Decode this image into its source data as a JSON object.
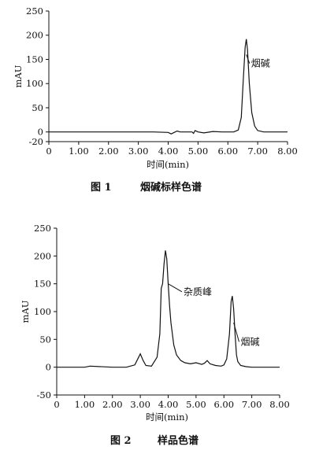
{
  "chart_data": [
    {
      "type": "line",
      "caption_num": "图 1",
      "caption_text": "烟碱标样色谱",
      "xlabel": "时间(min)",
      "ylabel": "mAU",
      "xlim": [
        0,
        8
      ],
      "ylim": [
        -20,
        250
      ],
      "xticks": [
        {
          "v": 0,
          "label": "0"
        },
        {
          "v": 1,
          "label": "1.00"
        },
        {
          "v": 2,
          "label": "2.00"
        },
        {
          "v": 3,
          "label": "3.00"
        },
        {
          "v": 4,
          "label": "4.00"
        },
        {
          "v": 5,
          "label": "5.00"
        },
        {
          "v": 6,
          "label": "6.00"
        },
        {
          "v": 7,
          "label": "7.00"
        },
        {
          "v": 8,
          "label": "8.00"
        }
      ],
      "yticks": [
        {
          "v": -20,
          "label": "-20"
        },
        {
          "v": 0,
          "label": "0"
        },
        {
          "v": 50,
          "label": "50"
        },
        {
          "v": 100,
          "label": "100"
        },
        {
          "v": 150,
          "label": "150"
        },
        {
          "v": 200,
          "label": "200"
        },
        {
          "v": 250,
          "label": "250"
        }
      ],
      "annotations": [
        {
          "text": "烟碱",
          "x": 6.62,
          "y": 160,
          "tx": 6.78,
          "ty": 135
        }
      ],
      "series": [
        {
          "x": [
            0,
            1,
            2,
            3,
            3.5,
            4.0,
            4.1,
            4.2,
            4.3,
            4.4,
            4.6,
            4.8,
            4.85,
            4.9,
            5.0,
            5.2,
            5.5,
            5.8,
            6.0,
            6.2,
            6.35,
            6.45,
            6.52,
            6.58,
            6.62,
            6.66,
            6.72,
            6.8,
            6.9,
            7.0,
            7.2,
            7.5,
            8.0
          ],
          "y": [
            0,
            0,
            0,
            0,
            0,
            -1,
            -4,
            -1,
            2,
            0,
            0,
            0,
            -3,
            3,
            0,
            -2,
            1,
            0,
            0,
            0,
            4,
            30,
            110,
            175,
            192,
            170,
            100,
            40,
            12,
            3,
            0,
            0,
            0
          ]
        }
      ]
    },
    {
      "type": "line",
      "caption_num": "图 2",
      "caption_text": "样品色谱",
      "xlabel": "时间(min)",
      "ylabel": "mAU",
      "xlim": [
        0,
        8
      ],
      "ylim": [
        -50,
        250
      ],
      "xticks": [
        {
          "v": 0,
          "label": "0"
        },
        {
          "v": 1,
          "label": "1.00"
        },
        {
          "v": 2,
          "label": "2.00"
        },
        {
          "v": 3,
          "label": "3.00"
        },
        {
          "v": 4,
          "label": "4.00"
        },
        {
          "v": 5,
          "label": "5.00"
        },
        {
          "v": 6,
          "label": "6.00"
        },
        {
          "v": 7,
          "label": "7.00"
        },
        {
          "v": 8,
          "label": "8.00"
        }
      ],
      "yticks": [
        {
          "v": -50,
          "label": "-50"
        },
        {
          "v": 0,
          "label": "0"
        },
        {
          "v": 50,
          "label": "50"
        },
        {
          "v": 100,
          "label": "100"
        },
        {
          "v": 150,
          "label": "150"
        },
        {
          "v": 200,
          "label": "200"
        },
        {
          "v": 250,
          "label": "250"
        }
      ],
      "annotations": [
        {
          "text": "杂质峰",
          "x": 4.0,
          "y": 150,
          "tx": 4.55,
          "ty": 130
        },
        {
          "text": "烟碱",
          "x": 6.35,
          "y": 80,
          "tx": 6.6,
          "ty": 40
        }
      ],
      "series": [
        {
          "x": [
            0,
            1.0,
            1.2,
            2.0,
            2.5,
            2.8,
            2.9,
            3.0,
            3.1,
            3.2,
            3.4,
            3.6,
            3.7,
            3.75,
            3.8,
            3.85,
            3.9,
            3.95,
            4.0,
            4.05,
            4.1,
            4.2,
            4.3,
            4.45,
            4.6,
            4.8,
            5.0,
            5.2,
            5.3,
            5.4,
            5.5,
            5.7,
            5.9,
            6.0,
            6.1,
            6.2,
            6.26,
            6.3,
            6.35,
            6.4,
            6.45,
            6.5,
            6.6,
            6.8,
            7.0,
            7.5,
            8.0
          ],
          "y": [
            0,
            0,
            2,
            0,
            0,
            4,
            14,
            24,
            12,
            3,
            2,
            18,
            60,
            142,
            150,
            185,
            210,
            195,
            150,
            110,
            80,
            40,
            22,
            12,
            8,
            6,
            8,
            5,
            7,
            12,
            6,
            3,
            2,
            4,
            15,
            60,
            118,
            128,
            105,
            60,
            22,
            10,
            3,
            1,
            0,
            0,
            0
          ]
        }
      ]
    }
  ]
}
